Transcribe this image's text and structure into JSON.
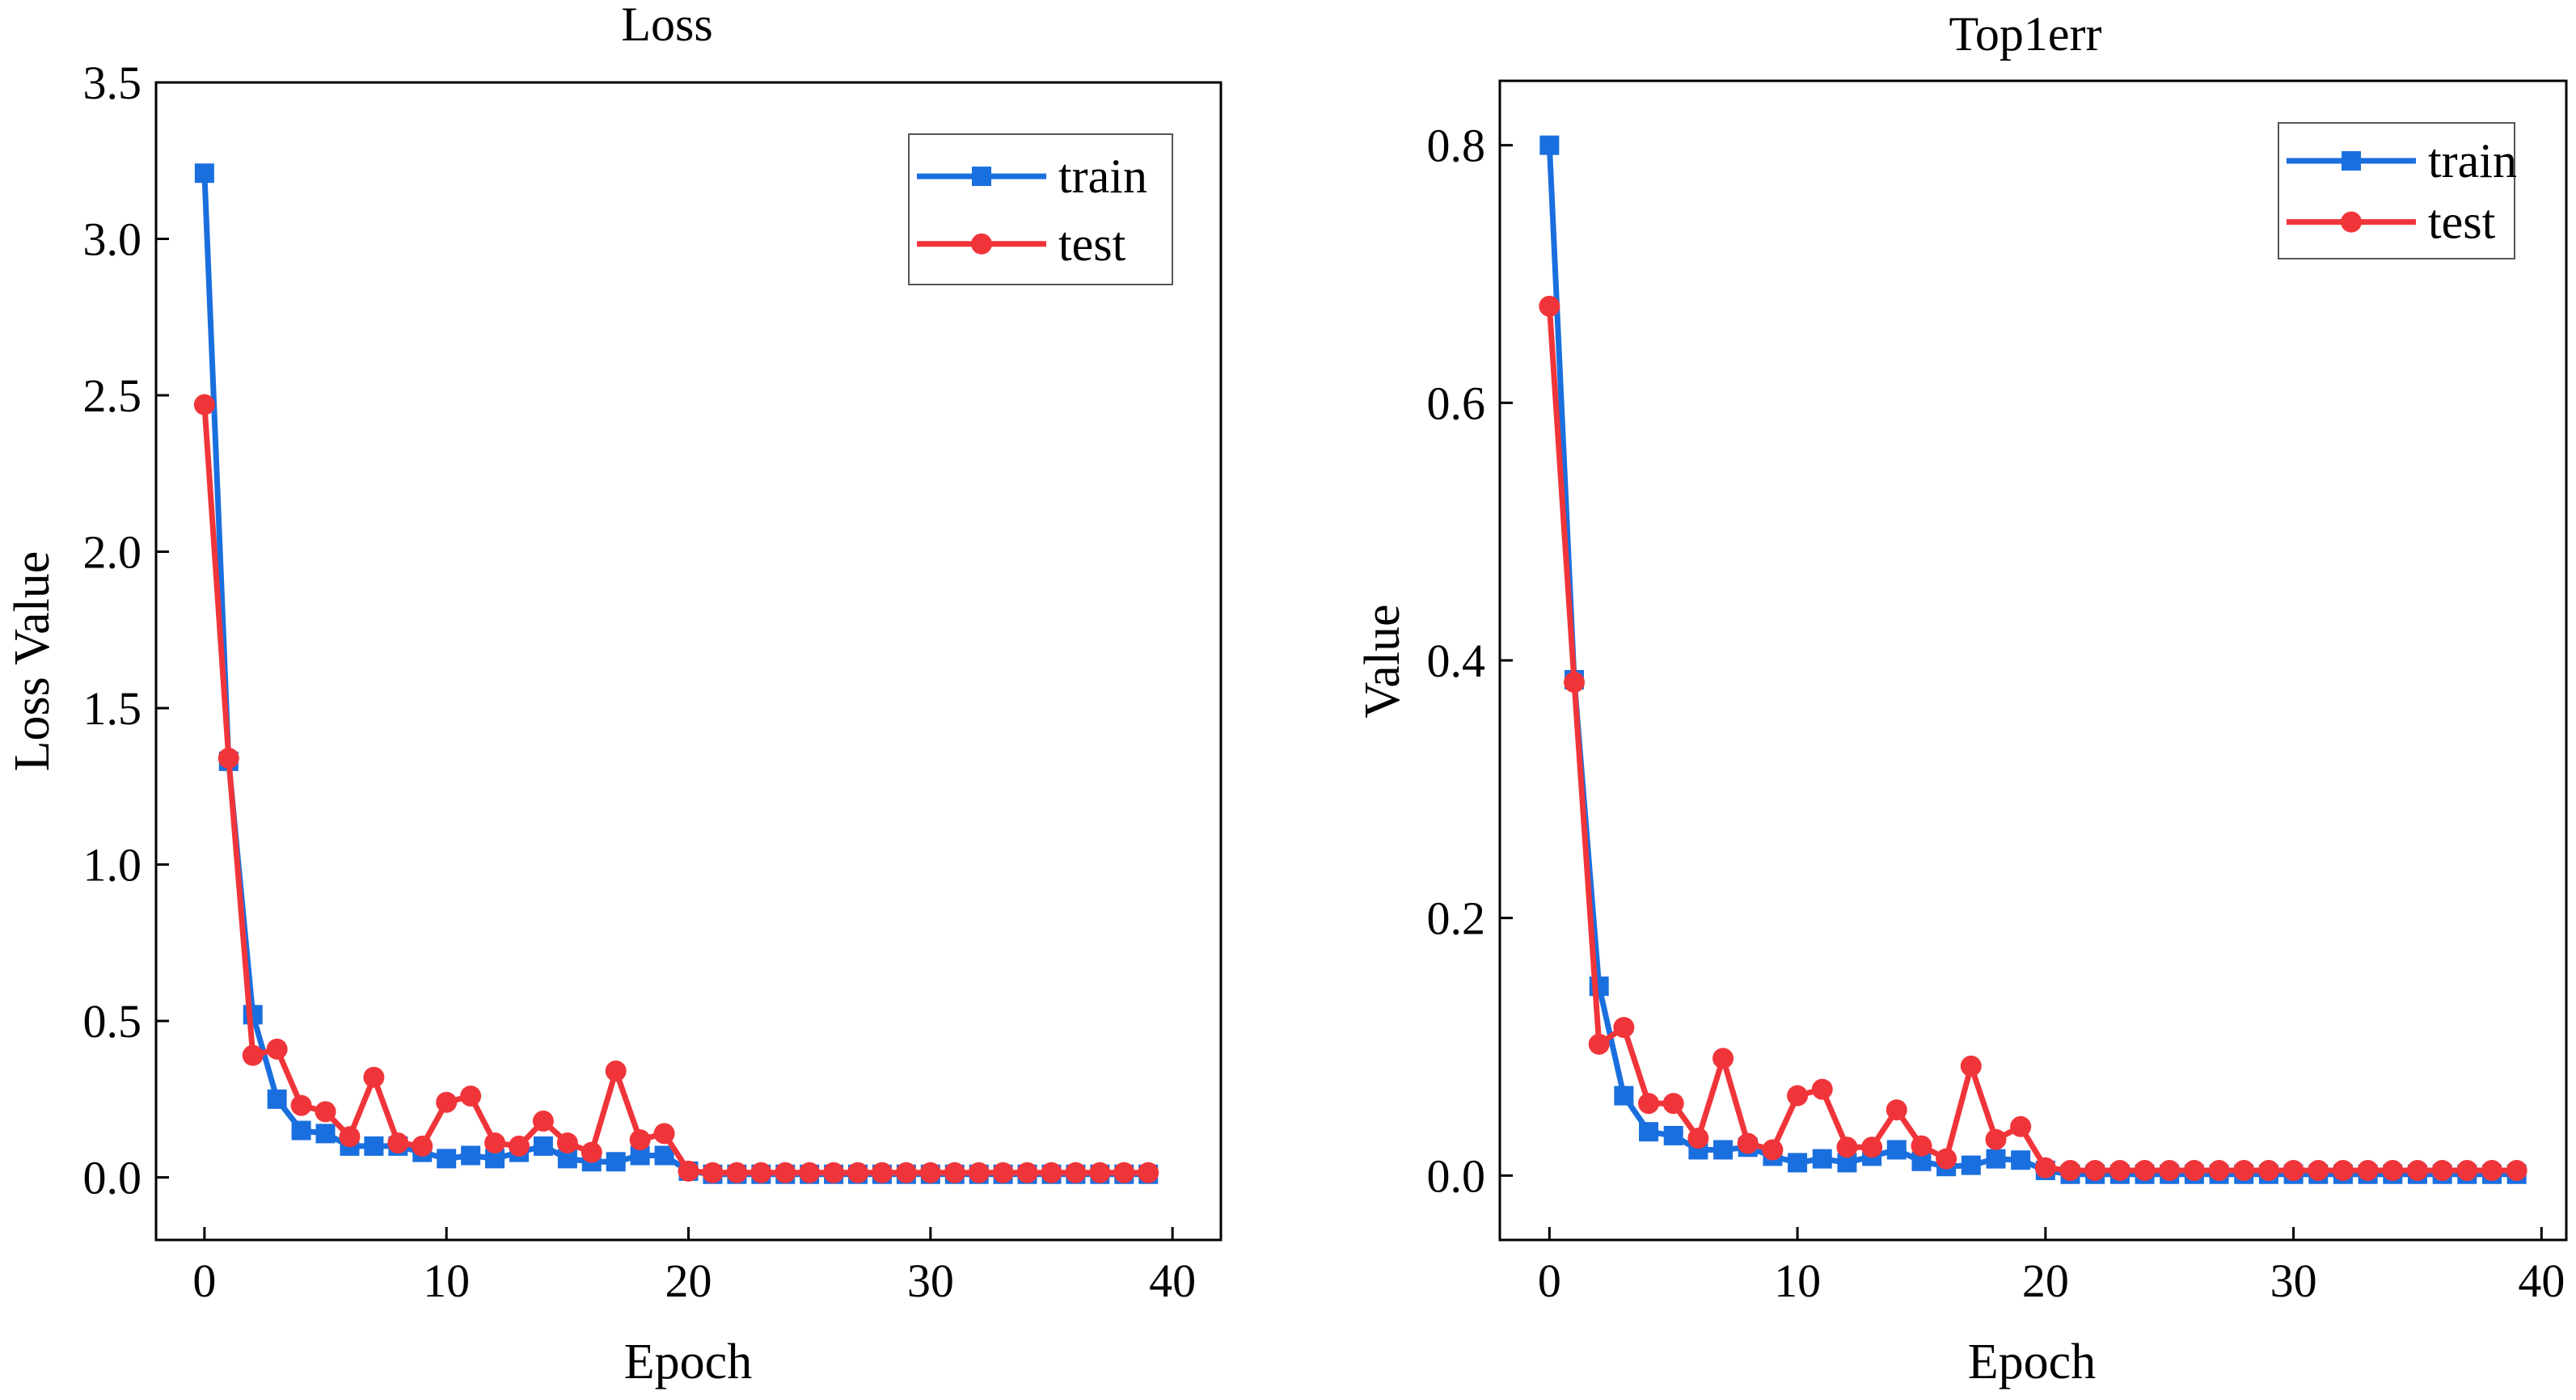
{
  "colors": {
    "train": "#1a6fdf",
    "test": "#f0353a",
    "axis": "#000000"
  },
  "chart_data": [
    {
      "type": "line",
      "title": "Loss",
      "xlabel": "Epoch",
      "ylabel": "Loss Value",
      "xlim": [
        -2,
        42
      ],
      "ylim": [
        -0.2,
        3.5
      ],
      "xticks": [
        0,
        10,
        20,
        30,
        40
      ],
      "xtick_labels": [
        "0",
        "10",
        "20",
        "30",
        "40"
      ],
      "yticks": [
        0,
        0.5,
        1,
        1.5,
        2,
        2.5,
        3,
        3.5
      ],
      "ytick_labels": [
        "0.0",
        "0.5",
        "1.0",
        "1.5",
        "2.0",
        "2.5",
        "3.0",
        "3.5"
      ],
      "grid": false,
      "legend": "top-right",
      "x": [
        0,
        1,
        2,
        3,
        4,
        5,
        6,
        7,
        8,
        9,
        10,
        11,
        12,
        13,
        14,
        15,
        16,
        17,
        18,
        19,
        20,
        21,
        22,
        23,
        24,
        25,
        26,
        27,
        28,
        29,
        30,
        31,
        32,
        33,
        34,
        35,
        36,
        37,
        38,
        39
      ],
      "series": [
        {
          "name": "train",
          "marker": "square",
          "values": [
            3.21,
            1.33,
            0.52,
            0.25,
            0.15,
            0.14,
            0.1,
            0.1,
            0.1,
            0.08,
            0.06,
            0.07,
            0.06,
            0.08,
            0.1,
            0.06,
            0.05,
            0.05,
            0.07,
            0.07,
            0.02,
            0.01,
            0.01,
            0.01,
            0.01,
            0.01,
            0.01,
            0.01,
            0.01,
            0.01,
            0.01,
            0.01,
            0.01,
            0.01,
            0.01,
            0.01,
            0.01,
            0.01,
            0.01,
            0.01
          ]
        },
        {
          "name": "test",
          "marker": "circle",
          "values": [
            2.47,
            1.34,
            0.39,
            0.41,
            0.23,
            0.21,
            0.13,
            0.32,
            0.11,
            0.1,
            0.24,
            0.26,
            0.11,
            0.1,
            0.18,
            0.11,
            0.08,
            0.34,
            0.12,
            0.14,
            0.02,
            0.015,
            0.015,
            0.015,
            0.015,
            0.015,
            0.015,
            0.015,
            0.015,
            0.015,
            0.015,
            0.015,
            0.015,
            0.015,
            0.015,
            0.015,
            0.015,
            0.015,
            0.015,
            0.015
          ]
        }
      ]
    },
    {
      "type": "line",
      "title": "Top1err",
      "xlabel": "Epoch",
      "ylabel": "Value",
      "xlim": [
        -2,
        41
      ],
      "ylim": [
        -0.05,
        0.85
      ],
      "xticks": [
        0,
        10,
        20,
        30,
        40
      ],
      "xtick_labels": [
        "0",
        "10",
        "20",
        "30",
        "40"
      ],
      "yticks": [
        0,
        0.2,
        0.4,
        0.6,
        0.8
      ],
      "ytick_labels": [
        "0.0",
        "0.2",
        "0.4",
        "0.6",
        "0.8"
      ],
      "grid": false,
      "legend": "top-right",
      "x": [
        0,
        1,
        2,
        3,
        4,
        5,
        6,
        7,
        8,
        9,
        10,
        11,
        12,
        13,
        14,
        15,
        16,
        17,
        18,
        19,
        20,
        21,
        22,
        23,
        24,
        25,
        26,
        27,
        28,
        29,
        30,
        31,
        32,
        33,
        34,
        35,
        36,
        37,
        38,
        39
      ],
      "series": [
        {
          "name": "train",
          "marker": "square",
          "values": [
            0.8,
            0.385,
            0.147,
            0.062,
            0.034,
            0.031,
            0.02,
            0.02,
            0.022,
            0.015,
            0.01,
            0.013,
            0.01,
            0.015,
            0.02,
            0.011,
            0.007,
            0.008,
            0.013,
            0.012,
            0.004,
            0.001,
            0.001,
            0.001,
            0.001,
            0.001,
            0.001,
            0.001,
            0.001,
            0.001,
            0.001,
            0.001,
            0.001,
            0.001,
            0.001,
            0.001,
            0.001,
            0.001,
            0.001,
            0.001
          ]
        },
        {
          "name": "test",
          "marker": "circle",
          "values": [
            0.675,
            0.383,
            0.102,
            0.115,
            0.056,
            0.056,
            0.029,
            0.091,
            0.025,
            0.02,
            0.062,
            0.067,
            0.022,
            0.022,
            0.051,
            0.023,
            0.013,
            0.085,
            0.028,
            0.038,
            0.006,
            0.004,
            0.004,
            0.004,
            0.004,
            0.004,
            0.004,
            0.004,
            0.004,
            0.004,
            0.004,
            0.004,
            0.004,
            0.004,
            0.004,
            0.004,
            0.004,
            0.004,
            0.004,
            0.004
          ]
        }
      ]
    }
  ]
}
